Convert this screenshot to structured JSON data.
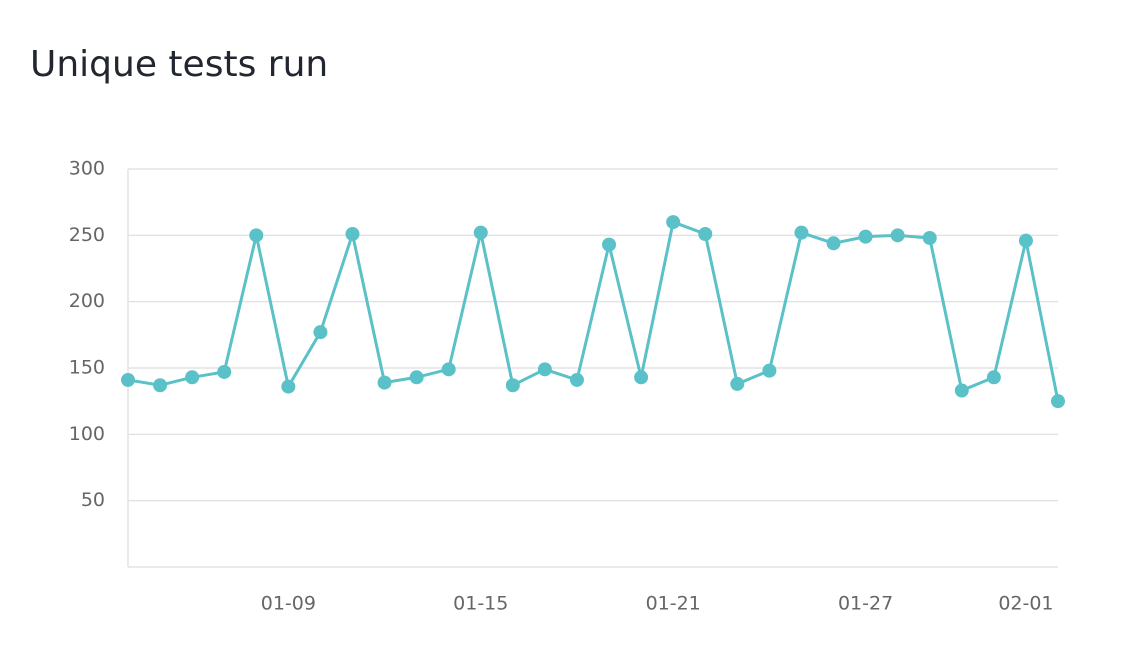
{
  "chart_data": {
    "type": "line",
    "title": "Unique tests run",
    "categories": [
      null,
      null,
      null,
      null,
      null,
      "01-09",
      null,
      null,
      null,
      null,
      null,
      "01-15",
      null,
      null,
      null,
      null,
      null,
      "01-21",
      null,
      null,
      null,
      null,
      null,
      "01-27",
      null,
      null,
      null,
      null,
      "02-01",
      null
    ],
    "series": [
      {
        "name": "Unique tests run",
        "color": "#5bc1c8",
        "values": [
          141,
          137,
          143,
          147,
          250,
          136,
          177,
          251,
          139,
          143,
          149,
          252,
          137,
          149,
          141,
          243,
          143,
          260,
          251,
          138,
          148,
          252,
          244,
          249,
          250,
          248,
          133,
          143,
          246,
          125
        ]
      }
    ],
    "ylim": [
      0,
      300
    ],
    "yticks": [
      50,
      100,
      150,
      200,
      250,
      300
    ],
    "grid": true
  }
}
